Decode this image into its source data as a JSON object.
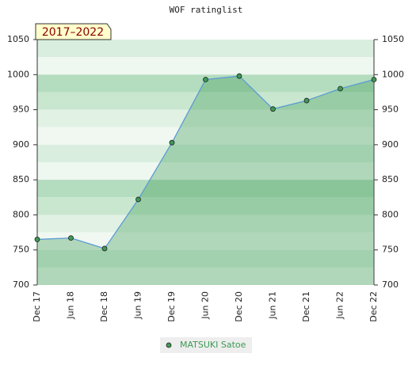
{
  "chart_data": {
    "type": "area",
    "title": "WOF ratinglist",
    "annotation": "2017–2022",
    "categories": [
      "Dec 17",
      "Jun 18",
      "Dec 18",
      "Jun 19",
      "Dec 19",
      "Jun 20",
      "Dec 20",
      "Jun 21",
      "Dec 21",
      "Jun 22",
      "Dec 22"
    ],
    "series": [
      {
        "name": "MATSUKI Satoe",
        "color": "#3c9a55",
        "line_color": "#5b9bd5",
        "values": [
          765,
          767,
          752,
          822,
          903,
          993,
          998,
          951,
          963,
          980,
          993
        ]
      }
    ],
    "ylim": [
      700,
      1050
    ],
    "yticks": [
      700,
      750,
      800,
      850,
      900,
      950,
      1000,
      1050
    ],
    "y2lim": [
      700,
      1050
    ],
    "y2ticks": [
      700,
      750,
      800,
      850,
      900,
      950,
      1000,
      1050
    ],
    "legend": "bottom"
  }
}
